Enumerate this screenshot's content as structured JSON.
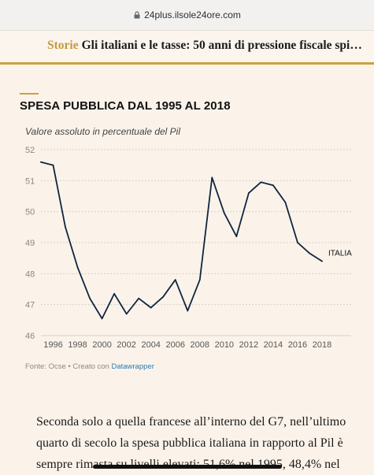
{
  "browser": {
    "url": "24plus.ilsole24ore.com"
  },
  "header": {
    "section": "Storie",
    "title": "Gli italiani e le tasse: 50 anni di pressione fiscale spi…"
  },
  "chart_data": {
    "type": "line",
    "title": "SPESA PUBBLICA DAL 1995 AL 2018",
    "subtitle": "Valore assoluto in percentuale del Pil",
    "series": [
      {
        "name": "ITALIA",
        "x": [
          1995,
          1996,
          1997,
          1998,
          1999,
          2000,
          2001,
          2002,
          2003,
          2004,
          2005,
          2006,
          2007,
          2008,
          2009,
          2010,
          2011,
          2012,
          2013,
          2014,
          2015,
          2016,
          2017,
          2018
        ],
        "values": [
          51.6,
          51.5,
          49.5,
          48.2,
          47.2,
          46.55,
          47.35,
          46.7,
          47.2,
          46.9,
          47.25,
          47.8,
          46.8,
          47.8,
          51.1,
          49.95,
          49.2,
          50.6,
          50.95,
          50.85,
          50.3,
          49.0,
          48.65,
          48.4
        ],
        "color": "#0f2540"
      }
    ],
    "x_ticks": [
      "1996",
      "1998",
      "2000",
      "2002",
      "2004",
      "2006",
      "2008",
      "2010",
      "2012",
      "2014",
      "2016",
      "2018"
    ],
    "y_ticks": [
      "52",
      "51",
      "50",
      "49",
      "48",
      "47",
      "46"
    ],
    "ylim": [
      46,
      52
    ],
    "xlim": [
      1995,
      2018
    ],
    "grid": true
  },
  "source": {
    "prefix": "Fonte: Ocse • Creato con ",
    "link": "Datawrapper"
  },
  "article": {
    "text": "Seconda solo a quella francese all’interno del G7, nell’ultimo quarto di secolo la spesa pubblica italiana in rapporto al Pil è sempre rimasta su livelli elevati: 51,6% nel 1995, 48,4% nel"
  }
}
